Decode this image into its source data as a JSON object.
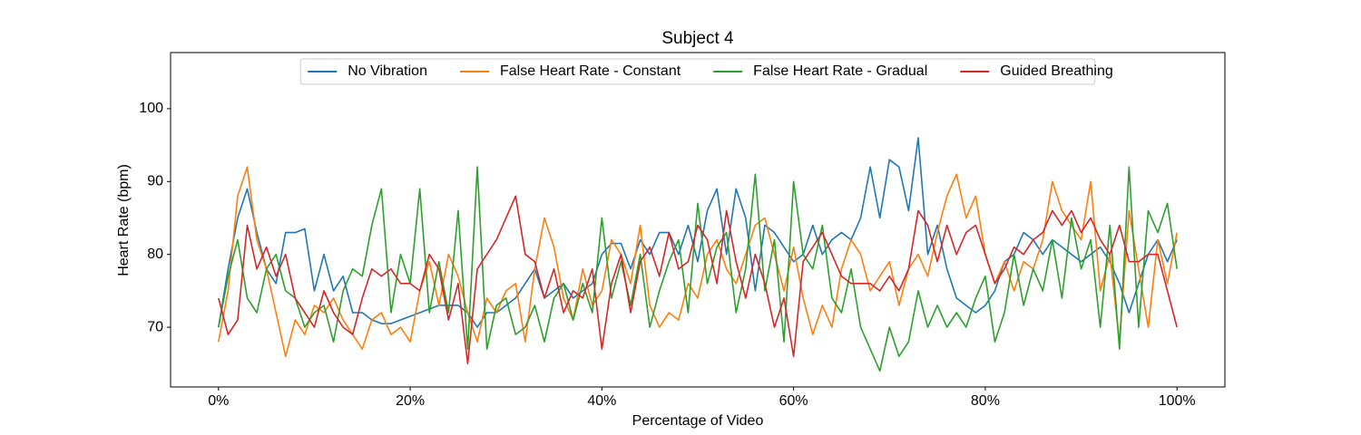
{
  "chart_data": {
    "type": "line",
    "title": "Subject 4",
    "xlabel": "Percentage of Video",
    "ylabel": "Heart Rate (bpm)",
    "x": [
      0,
      1,
      2,
      3,
      4,
      5,
      6,
      7,
      8,
      9,
      10,
      11,
      12,
      13,
      14,
      15,
      16,
      17,
      18,
      19,
      20,
      21,
      22,
      23,
      24,
      25,
      26,
      27,
      28,
      29,
      30,
      31,
      32,
      33,
      34,
      35,
      36,
      37,
      38,
      39,
      40,
      41,
      42,
      43,
      44,
      45,
      46,
      47,
      48,
      49,
      50,
      51,
      52,
      53,
      54,
      55,
      56,
      57,
      58,
      59,
      60,
      61,
      62,
      63,
      64,
      65,
      66,
      67,
      68,
      69,
      70,
      71,
      72,
      73,
      74,
      75,
      76,
      77,
      78,
      79,
      80,
      81,
      82,
      83,
      84,
      85,
      86,
      87,
      88,
      89,
      90,
      91,
      92,
      93,
      94,
      95,
      96,
      97,
      98,
      99,
      100
    ],
    "series": [
      {
        "name": "No Vibration",
        "color": "#1f77b4",
        "values": [
          70,
          78,
          85,
          89,
          83,
          78,
          76,
          83,
          83,
          83.5,
          75,
          80,
          75,
          77,
          72,
          72,
          71,
          70.5,
          70.5,
          71,
          71.5,
          72,
          72.5,
          73,
          73,
          73,
          72,
          70,
          72,
          72,
          73,
          74,
          76,
          78,
          74,
          75,
          76,
          74,
          75,
          76,
          80,
          81.5,
          81.5,
          78,
          82,
          80,
          83,
          83,
          80,
          84,
          79,
          86,
          89,
          80,
          89,
          85,
          75,
          84,
          83,
          81,
          79,
          80,
          84,
          80,
          82,
          83,
          82,
          85,
          92,
          85,
          93,
          92,
          86,
          96,
          80,
          84,
          78,
          74,
          73,
          72,
          73,
          75,
          79,
          80,
          83,
          82,
          80,
          82,
          81,
          80,
          79,
          80,
          81,
          79,
          76,
          72,
          76,
          80,
          82,
          79,
          82
        ]
      },
      {
        "name": "False Heart Rate - Constant",
        "color": "#ff7f0e",
        "values": [
          68,
          75,
          88,
          92,
          82,
          78,
          72,
          66,
          71,
          69,
          73,
          72,
          74,
          71,
          69,
          67,
          71,
          72,
          69,
          70,
          68,
          75,
          79,
          73,
          80,
          77,
          72,
          68,
          74,
          72,
          75,
          76,
          68,
          78,
          85,
          81,
          74,
          71,
          78,
          73,
          75,
          82,
          80,
          76,
          84,
          73,
          70,
          72,
          71,
          76,
          74,
          80,
          82,
          78,
          76,
          80,
          84,
          85,
          80,
          75,
          81,
          74,
          69,
          73,
          70,
          78,
          82,
          80,
          75,
          77,
          79,
          73,
          78,
          80,
          77,
          83,
          88,
          91,
          85,
          88,
          80,
          76,
          79,
          75,
          79,
          78,
          82,
          90,
          86,
          84,
          82,
          90,
          75,
          80,
          68,
          86,
          78,
          70,
          82,
          76,
          83
        ]
      },
      {
        "name": "False Heart Rate - Gradual",
        "color": "#2ca02c",
        "values": [
          70,
          77,
          82,
          74,
          72,
          78,
          80,
          75,
          74,
          70,
          72,
          73,
          68,
          75,
          78,
          77,
          84,
          89,
          72,
          80,
          76,
          89,
          72,
          79,
          72,
          86,
          67,
          92,
          67,
          73,
          74,
          69,
          70,
          73,
          68,
          74,
          76,
          71,
          76,
          72,
          85,
          74,
          79,
          73,
          80,
          70,
          75,
          79,
          82,
          72,
          87,
          76,
          81,
          83,
          72,
          78,
          91,
          75,
          82,
          68,
          90,
          80,
          78,
          84,
          74,
          72,
          78,
          70,
          67,
          64,
          70,
          66,
          68,
          75,
          70,
          73,
          70,
          72,
          70,
          74,
          77,
          68,
          72,
          80,
          73,
          78,
          75,
          82,
          74,
          85,
          78,
          82,
          70,
          84,
          67,
          92,
          70,
          86,
          83,
          87,
          78
        ]
      },
      {
        "name": "Guided Breathing",
        "color": "#d62728",
        "values": [
          74,
          69,
          71,
          84,
          78,
          81,
          77,
          80,
          74,
          72,
          70,
          75,
          72,
          70,
          69,
          74,
          78,
          77,
          78,
          76,
          76,
          75,
          80,
          78,
          71,
          76,
          65,
          78,
          80,
          82,
          85,
          88,
          80,
          79,
          74,
          78,
          72,
          75,
          74,
          78,
          67,
          76,
          80,
          72,
          79,
          81,
          77,
          83,
          78,
          79,
          84,
          82,
          76,
          86,
          79,
          74,
          80,
          76,
          70,
          74,
          66,
          79,
          81,
          83,
          80,
          77,
          76,
          76,
          76,
          75,
          77,
          75,
          78,
          86,
          84,
          79,
          84,
          80,
          83,
          84,
          80,
          76,
          78,
          81,
          80,
          82,
          83,
          86,
          84,
          86,
          83,
          85,
          82,
          80,
          84,
          79,
          79,
          80,
          80,
          75,
          70
        ]
      }
    ],
    "xlim": [
      -5,
      105
    ],
    "ylim": [
      61.8,
      107.7
    ],
    "xticks": [
      {
        "value": 0,
        "label": "0%"
      },
      {
        "value": 20,
        "label": "20%"
      },
      {
        "value": 40,
        "label": "40%"
      },
      {
        "value": 60,
        "label": "60%"
      },
      {
        "value": 80,
        "label": "80%"
      },
      {
        "value": 100,
        "label": "100%"
      }
    ],
    "yticks": [
      70,
      80,
      90,
      100
    ],
    "legend": "upper center",
    "grid": false
  }
}
